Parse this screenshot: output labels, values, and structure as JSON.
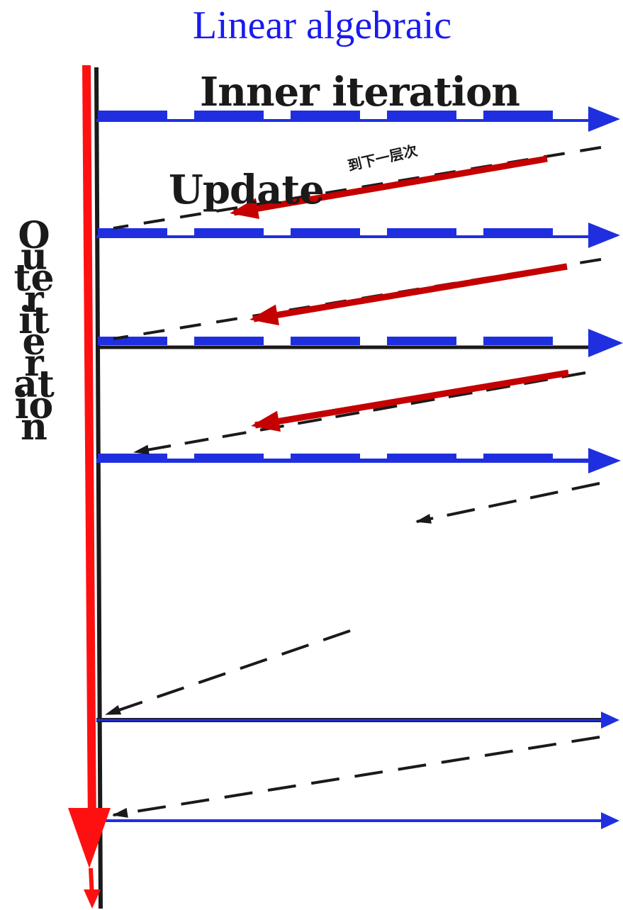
{
  "title": "Linear algebraic",
  "labels": {
    "inner_iteration": "Inner iteration",
    "update": "Update",
    "cjk_note": "到下一层次",
    "outer_iteration": "Outer iteration"
  },
  "colors": {
    "title_blue": "#1a1aee",
    "arrow_blue": "#1f2fe0",
    "arrow_red": "#c40000",
    "axis_red": "#ff1010",
    "ink": "#1a1a1a"
  }
}
